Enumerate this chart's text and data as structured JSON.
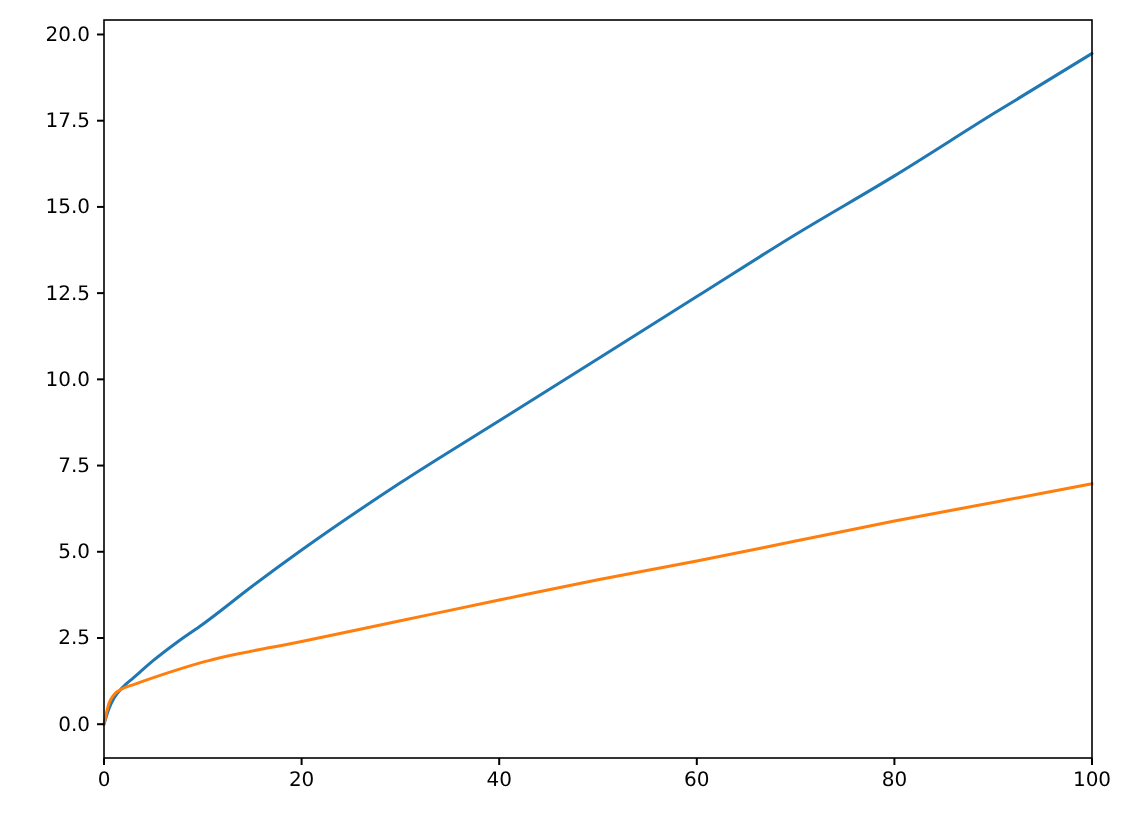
{
  "chart_data": {
    "type": "line",
    "xlim": [
      0,
      100
    ],
    "xticks": [
      0,
      20,
      40,
      60,
      80,
      100
    ],
    "ylim": [
      -0.98,
      20.42
    ],
    "yticks": [
      {
        "value": 0,
        "label": "0.0"
      },
      {
        "value": 2.5,
        "label": "2.5"
      },
      {
        "value": 5,
        "label": "5.0"
      },
      {
        "value": 7.5,
        "label": "7.5"
      },
      {
        "value": 10,
        "label": "10.0"
      },
      {
        "value": 12.5,
        "label": "12.5"
      },
      {
        "value": 15,
        "label": "15.0"
      },
      {
        "value": 17.5,
        "label": "17.5"
      },
      {
        "value": 20,
        "label": "20.0"
      }
    ],
    "grid": false,
    "series": [
      {
        "color": "#1f77b4",
        "x": [
          0,
          0.5,
          1,
          2,
          3,
          5,
          7.5,
          10,
          15,
          20,
          30,
          40,
          50,
          60,
          70,
          80,
          90,
          100
        ],
        "values": [
          0,
          0.45,
          0.75,
          1.1,
          1.35,
          1.85,
          2.4,
          2.9,
          4.0,
          5.05,
          7.0,
          8.8,
          10.6,
          12.4,
          14.2,
          15.9,
          17.7,
          19.45
        ]
      },
      {
        "color": "#ff7f0e",
        "x": [
          0,
          0.5,
          1,
          2,
          3,
          5,
          10,
          20,
          30,
          40,
          50,
          60,
          70,
          80,
          90,
          100
        ],
        "values": [
          0,
          0.6,
          0.85,
          1.05,
          1.15,
          1.35,
          1.8,
          2.4,
          3.0,
          3.6,
          4.19,
          4.73,
          5.31,
          5.89,
          6.43,
          6.97
        ]
      }
    ]
  }
}
